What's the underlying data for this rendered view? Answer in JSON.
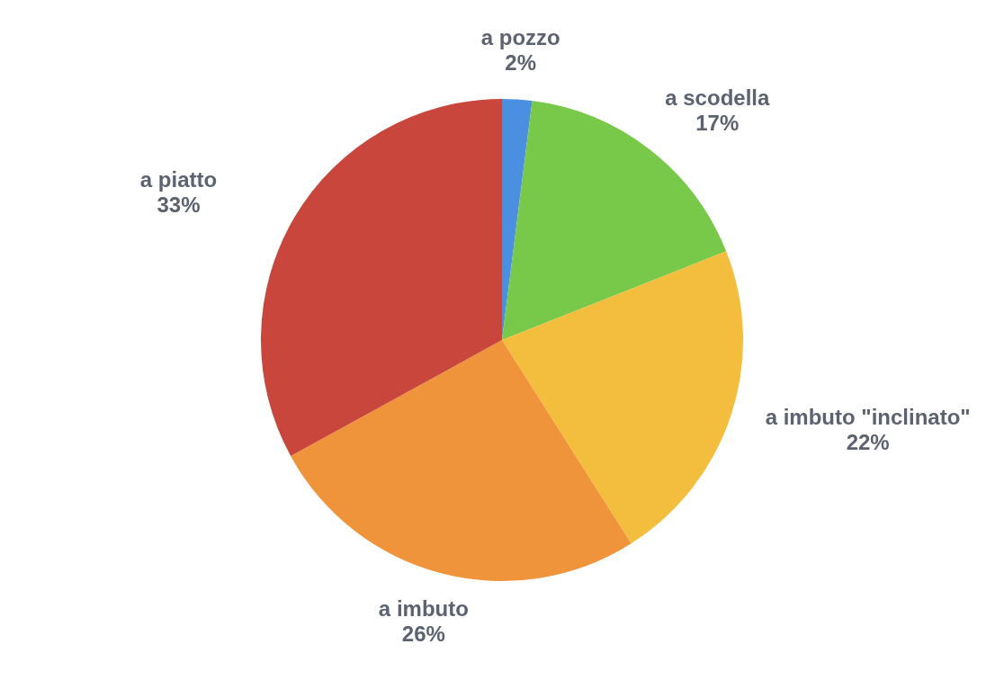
{
  "chart_data": {
    "type": "pie",
    "categories": [
      "a pozzo",
      "a scodella",
      "a imbuto \"inclinato\"",
      "a imbuto",
      "a piatto"
    ],
    "values": [
      2,
      17,
      22,
      26,
      33
    ],
    "value_labels": [
      "2%",
      "17%",
      "22%",
      "26%",
      "33%"
    ],
    "colors": [
      "#4a8fe0",
      "#78c94a",
      "#f3bd3e",
      "#ef943a",
      "#c8463b"
    ],
    "legend": false
  }
}
